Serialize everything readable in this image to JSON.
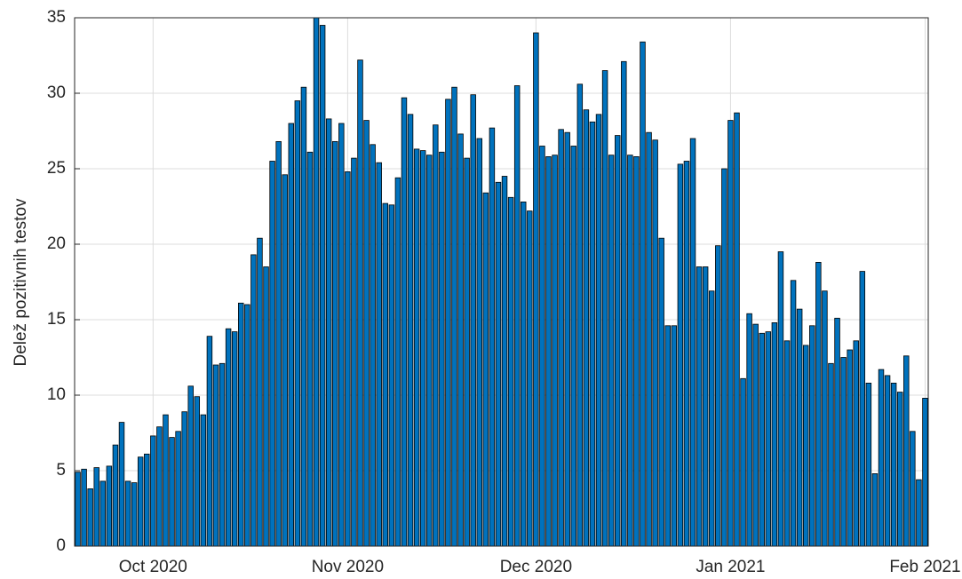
{
  "chart_data": {
    "type": "bar",
    "ylabel": "Delež pozitivnih testov",
    "categories": [
      null,
      null,
      null,
      null,
      null,
      null,
      null,
      null,
      null,
      null,
      null,
      null,
      "Oct 2020",
      null,
      null,
      null,
      null,
      null,
      null,
      null,
      null,
      null,
      null,
      null,
      null,
      null,
      null,
      null,
      null,
      null,
      null,
      null,
      null,
      null,
      null,
      null,
      null,
      null,
      null,
      null,
      null,
      null,
      null,
      "Nov 2020",
      null,
      null,
      null,
      null,
      null,
      null,
      null,
      null,
      null,
      null,
      null,
      null,
      null,
      null,
      null,
      null,
      null,
      null,
      null,
      null,
      null,
      null,
      null,
      null,
      null,
      null,
      null,
      null,
      null,
      "Dec 2020",
      null,
      null,
      null,
      null,
      null,
      null,
      null,
      null,
      null,
      null,
      null,
      null,
      null,
      null,
      null,
      null,
      null,
      null,
      null,
      null,
      null,
      null,
      null,
      null,
      null,
      null,
      null,
      null,
      null,
      null,
      "Jan 2021",
      null,
      null,
      null,
      null,
      null,
      null,
      null,
      null,
      null,
      null,
      null,
      null,
      null,
      null,
      null,
      null,
      null,
      null,
      null,
      null,
      null,
      null,
      null,
      null,
      null,
      null,
      null,
      null,
      null,
      null,
      "Feb 2021"
    ],
    "values": [
      4.9,
      5.1,
      3.8,
      5.2,
      4.3,
      5.3,
      6.7,
      8.2,
      4.3,
      4.2,
      5.9,
      6.1,
      7.3,
      7.9,
      8.7,
      7.2,
      7.6,
      8.9,
      10.6,
      9.9,
      8.7,
      13.9,
      12.0,
      12.1,
      14.4,
      14.2,
      16.1,
      16.0,
      19.3,
      20.4,
      18.5,
      25.5,
      26.8,
      24.6,
      28.0,
      29.5,
      30.4,
      26.1,
      35.0,
      34.5,
      28.3,
      26.8,
      28.0,
      24.8,
      25.7,
      32.2,
      28.2,
      26.6,
      25.4,
      22.7,
      22.6,
      24.4,
      29.7,
      28.6,
      26.3,
      26.2,
      25.9,
      27.9,
      26.1,
      29.6,
      30.4,
      27.3,
      25.7,
      29.9,
      27.0,
      23.4,
      27.7,
      24.1,
      24.5,
      23.1,
      30.5,
      22.8,
      22.2,
      34.0,
      26.5,
      25.8,
      25.9,
      27.6,
      27.4,
      26.5,
      30.6,
      28.9,
      28.1,
      28.6,
      31.5,
      25.9,
      27.2,
      32.1,
      25.9,
      25.8,
      33.4,
      27.4,
      26.9,
      20.4,
      14.6,
      14.6,
      25.3,
      25.5,
      27.0,
      18.5,
      18.5,
      16.9,
      19.9,
      25.0,
      28.2,
      28.7,
      11.1,
      15.4,
      14.7,
      14.1,
      14.2,
      14.8,
      19.5,
      13.6,
      17.6,
      15.7,
      13.3,
      14.6,
      18.8,
      16.9,
      12.1,
      15.1,
      12.5,
      13.0,
      13.6,
      18.2,
      10.8,
      4.8,
      11.7,
      11.3,
      10.8,
      10.2,
      12.6,
      7.6,
      4.4,
      9.8
    ],
    "color": "#0072bd",
    "ylim": [
      0,
      35
    ],
    "yticks": [
      0,
      5,
      10,
      15,
      20,
      25,
      30,
      35
    ],
    "grid": true
  }
}
